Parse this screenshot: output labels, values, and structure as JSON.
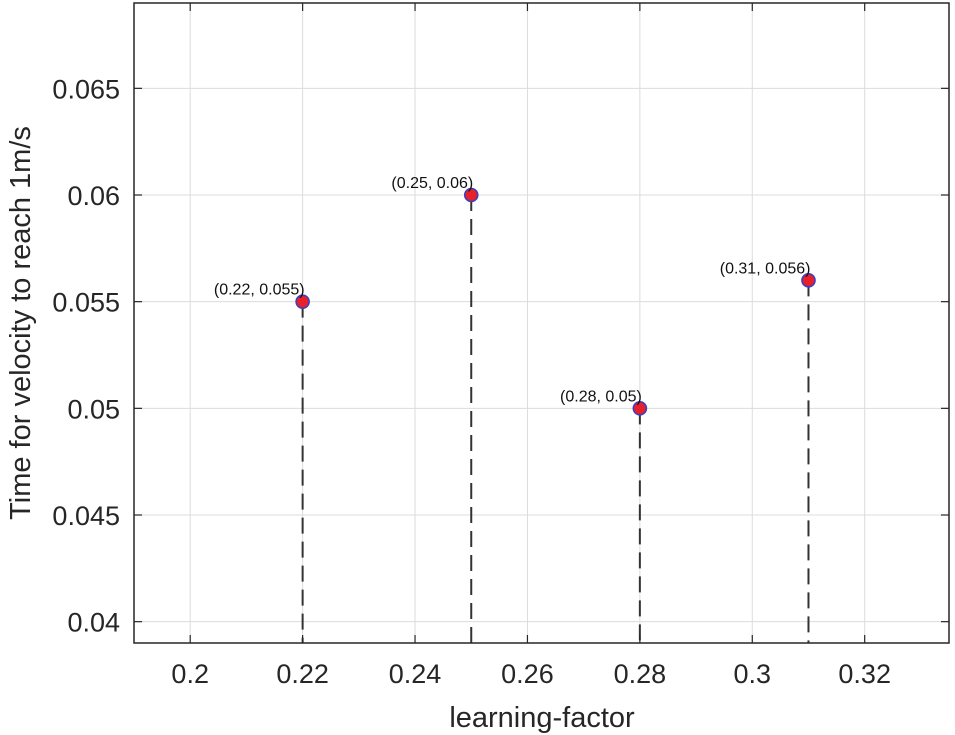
{
  "chart_data": {
    "type": "scatter",
    "title": "",
    "xlabel": "learning-factor",
    "ylabel": "Time for velocity to reach 1m/s",
    "xlim": [
      0.19,
      0.335
    ],
    "ylim": [
      0.039,
      0.069
    ],
    "grid": true,
    "x_ticks": [
      0.2,
      0.22,
      0.24,
      0.26,
      0.28,
      0.3,
      0.32
    ],
    "x_tick_labels": [
      "0.2",
      "0.22",
      "0.24",
      "0.26",
      "0.28",
      "0.3",
      "0.32"
    ],
    "y_ticks": [
      0.04,
      0.045,
      0.05,
      0.055,
      0.06,
      0.065
    ],
    "y_tick_labels": [
      "0.04",
      "0.045",
      "0.05",
      "0.055",
      "0.06",
      "0.065"
    ],
    "points": [
      {
        "x": 0.22,
        "y": 0.055,
        "label": "(0.22, 0.055)"
      },
      {
        "x": 0.25,
        "y": 0.06,
        "label": "(0.25, 0.06)"
      },
      {
        "x": 0.28,
        "y": 0.05,
        "label": "(0.28, 0.05)"
      },
      {
        "x": 0.31,
        "y": 0.056,
        "label": "(0.31, 0.056)"
      }
    ],
    "drop_lines": "dashed",
    "colors": {
      "marker_fill": "#e8202a",
      "marker_edge": "#3b3fbf",
      "drop_line": "#333333",
      "grid": "#dcdcdc",
      "axis": "#262626",
      "text": "#262626"
    }
  }
}
